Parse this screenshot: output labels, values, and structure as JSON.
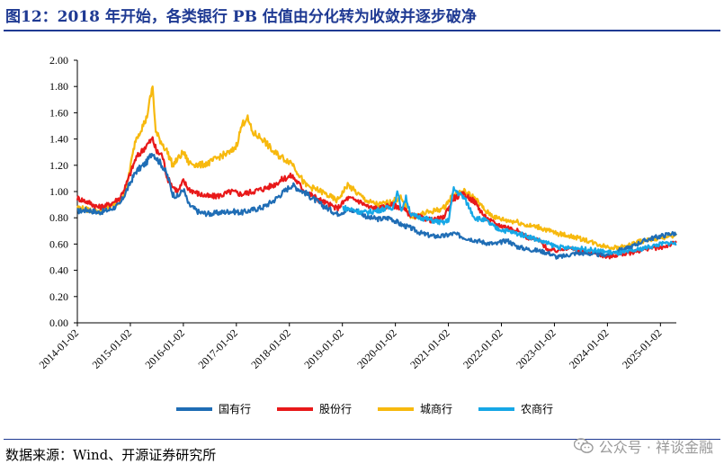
{
  "title": "图12：2018 年开始，各类银行 PB 估值由分化转为收敛并逐步破净",
  "source": "数据来源：Wind、开源证券研究所",
  "watermark": "公众号 · 祥谈金融",
  "chart_data": {
    "type": "line",
    "title": "",
    "xlabel": "",
    "ylabel": "",
    "ylim": [
      0,
      2
    ],
    "yticks": [
      "2.00",
      "1.80",
      "1.60",
      "1.40",
      "1.20",
      "1.00",
      "0.80",
      "0.60",
      "0.40",
      "0.20",
      "0.00"
    ],
    "xticks": [
      "2014-01-02",
      "2015-01-02",
      "2016-01-02",
      "2017-01-02",
      "2018-01-02",
      "2019-01-02",
      "2020-01-02",
      "2021-01-02",
      "2022-01-02",
      "2023-01-02",
      "2024-01-02",
      "2025-01-02"
    ],
    "legend_position": "bottom",
    "series": [
      {
        "name": "国有行",
        "color": "#1F6DB5",
        "x": [
          2014.0,
          2014.2,
          2014.4,
          2014.6,
          2014.8,
          2014.92,
          2015.1,
          2015.3,
          2015.42,
          2015.5,
          2015.6,
          2015.7,
          2015.8,
          2015.9,
          2016.0,
          2016.1,
          2016.3,
          2016.5,
          2016.7,
          2016.9,
          2017.1,
          2017.3,
          2017.5,
          2017.7,
          2017.9,
          2018.05,
          2018.3,
          2018.6,
          2018.9,
          2019.1,
          2019.3,
          2019.5,
          2019.7,
          2019.9,
          2020.1,
          2020.3,
          2020.5,
          2020.7,
          2020.9,
          2021.1,
          2021.3,
          2021.5,
          2021.7,
          2021.9,
          2022.1,
          2022.3,
          2022.5,
          2022.7,
          2022.9,
          2023.05,
          2023.2,
          2023.4,
          2023.6,
          2023.8,
          2024.0,
          2024.2,
          2024.4,
          2024.6,
          2024.8,
          2025.0,
          2025.2,
          2025.3
        ],
        "values": [
          0.85,
          0.86,
          0.84,
          0.86,
          0.9,
          1.0,
          1.15,
          1.22,
          1.3,
          1.25,
          1.2,
          1.12,
          0.98,
          0.96,
          1.02,
          0.9,
          0.84,
          0.83,
          0.84,
          0.85,
          0.84,
          0.86,
          0.88,
          0.93,
          1.0,
          1.05,
          0.99,
          0.9,
          0.83,
          0.86,
          0.85,
          0.8,
          0.79,
          0.8,
          0.75,
          0.72,
          0.68,
          0.66,
          0.66,
          0.68,
          0.65,
          0.63,
          0.61,
          0.6,
          0.63,
          0.58,
          0.56,
          0.55,
          0.53,
          0.5,
          0.51,
          0.53,
          0.53,
          0.52,
          0.52,
          0.55,
          0.57,
          0.61,
          0.64,
          0.66,
          0.68,
          0.68
        ]
      },
      {
        "name": "股份行",
        "color": "#E8191A",
        "x": [
          2014.0,
          2014.2,
          2014.4,
          2014.6,
          2014.8,
          2014.92,
          2015.1,
          2015.3,
          2015.42,
          2015.5,
          2015.6,
          2015.7,
          2015.8,
          2015.9,
          2016.0,
          2016.1,
          2016.3,
          2016.5,
          2016.7,
          2016.9,
          2017.1,
          2017.3,
          2017.5,
          2017.7,
          2017.9,
          2018.05,
          2018.3,
          2018.6,
          2018.9,
          2019.1,
          2019.3,
          2019.5,
          2019.7,
          2019.9,
          2020.1,
          2020.3,
          2020.5,
          2020.7,
          2020.9,
          2021.1,
          2021.3,
          2021.5,
          2021.7,
          2021.9,
          2022.1,
          2022.3,
          2022.5,
          2022.7,
          2022.9,
          2023.05,
          2023.2,
          2023.4,
          2023.6,
          2023.8,
          2024.0,
          2024.2,
          2024.4,
          2024.6,
          2024.8,
          2025.0,
          2025.2,
          2025.3
        ],
        "values": [
          0.95,
          0.92,
          0.88,
          0.9,
          0.95,
          1.05,
          1.25,
          1.35,
          1.4,
          1.3,
          1.28,
          1.1,
          1.04,
          1.0,
          1.08,
          1.02,
          0.98,
          0.96,
          0.97,
          1.0,
          0.98,
          1.0,
          1.02,
          1.05,
          1.1,
          1.12,
          1.0,
          0.93,
          0.87,
          0.95,
          0.93,
          0.88,
          0.87,
          0.9,
          0.88,
          0.82,
          0.8,
          0.78,
          0.8,
          0.95,
          0.98,
          0.92,
          0.8,
          0.75,
          0.73,
          0.7,
          0.65,
          0.63,
          0.55,
          0.55,
          0.57,
          0.56,
          0.54,
          0.53,
          0.5,
          0.52,
          0.53,
          0.55,
          0.57,
          0.57,
          0.6,
          0.61
        ]
      },
      {
        "name": "城商行",
        "color": "#F7B90E",
        "x": [
          2014.0,
          2014.2,
          2014.4,
          2014.6,
          2014.8,
          2014.92,
          2015.1,
          2015.3,
          2015.42,
          2015.48,
          2015.55,
          2015.7,
          2015.8,
          2015.9,
          2016.0,
          2016.1,
          2016.3,
          2016.5,
          2016.7,
          2016.9,
          2017.0,
          2017.1,
          2017.2,
          2017.3,
          2017.5,
          2017.7,
          2017.9,
          2018.05,
          2018.3,
          2018.6,
          2018.9,
          2019.1,
          2019.3,
          2019.5,
          2019.7,
          2019.9,
          2020.1,
          2020.3,
          2020.5,
          2020.7,
          2020.9,
          2021.1,
          2021.3,
          2021.5,
          2021.7,
          2021.9,
          2022.1,
          2022.3,
          2022.5,
          2022.7,
          2022.9,
          2023.05,
          2023.2,
          2023.4,
          2023.6,
          2023.8,
          2024.0,
          2024.2,
          2024.4,
          2024.6,
          2024.8,
          2025.0,
          2025.2,
          2025.3
        ],
        "values": [
          0.88,
          0.86,
          0.85,
          0.88,
          0.92,
          1.02,
          1.4,
          1.55,
          1.8,
          1.45,
          1.4,
          1.3,
          1.2,
          1.25,
          1.3,
          1.22,
          1.2,
          1.22,
          1.27,
          1.3,
          1.35,
          1.5,
          1.57,
          1.45,
          1.4,
          1.3,
          1.25,
          1.22,
          1.05,
          1.0,
          0.93,
          1.05,
          0.98,
          0.92,
          0.9,
          0.92,
          0.95,
          0.8,
          0.83,
          0.85,
          0.87,
          0.98,
          1.0,
          0.95,
          0.85,
          0.8,
          0.78,
          0.77,
          0.74,
          0.73,
          0.7,
          0.68,
          0.67,
          0.65,
          0.63,
          0.6,
          0.58,
          0.57,
          0.59,
          0.62,
          0.63,
          0.65,
          0.66,
          0.68
        ]
      },
      {
        "name": "农商行",
        "color": "#16A7E6",
        "x": [
          2019.0,
          2019.2,
          2019.4,
          2019.6,
          2019.8,
          2019.95,
          2020.05,
          2020.1,
          2020.2,
          2020.3,
          2020.5,
          2020.7,
          2020.9,
          2021.0,
          2021.1,
          2021.3,
          2021.5,
          2021.7,
          2021.9,
          2022.1,
          2022.3,
          2022.5,
          2022.7,
          2022.9,
          2023.05,
          2023.2,
          2023.4,
          2023.6,
          2023.8,
          2024.0,
          2024.2,
          2024.4,
          2024.6,
          2024.8,
          2025.0,
          2025.2,
          2025.3
        ],
        "values": [
          0.88,
          0.86,
          0.84,
          0.85,
          0.87,
          0.88,
          1.0,
          0.85,
          0.95,
          0.82,
          0.8,
          0.78,
          0.76,
          0.78,
          1.02,
          0.95,
          0.8,
          0.78,
          0.72,
          0.7,
          0.68,
          0.66,
          0.63,
          0.6,
          0.58,
          0.57,
          0.57,
          0.56,
          0.55,
          0.54,
          0.53,
          0.54,
          0.56,
          0.58,
          0.6,
          0.61,
          0.6
        ]
      }
    ]
  }
}
